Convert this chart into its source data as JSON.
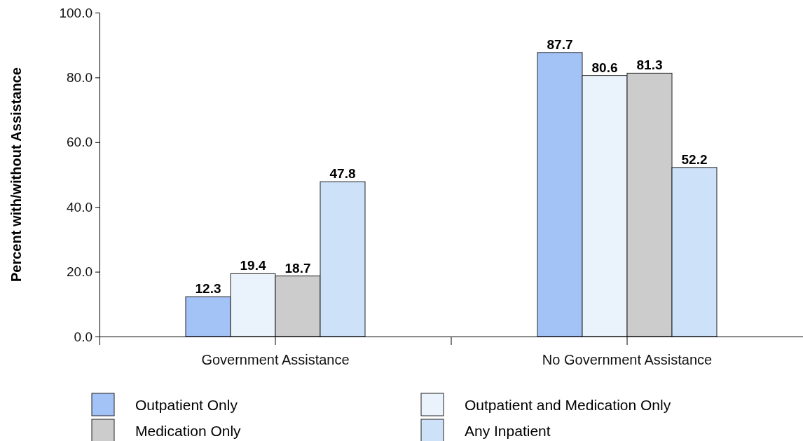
{
  "chart_data": {
    "type": "bar",
    "ylabel": "Percent with/without Assistance",
    "categories": [
      "Government Assistance",
      "No Government Assistance"
    ],
    "series": [
      {
        "name": "Outpatient Only",
        "color": "#a3c2f6",
        "values": [
          12.3,
          87.7
        ]
      },
      {
        "name": "Outpatient and Medication Only",
        "color": "#eaf2fb",
        "values": [
          19.4,
          80.6
        ]
      },
      {
        "name": "Medication Only",
        "color": "#cccccc",
        "values": [
          18.7,
          81.3
        ]
      },
      {
        "name": "Any Inpatient",
        "color": "#cde1f9",
        "values": [
          47.8,
          52.2
        ]
      }
    ],
    "ylim": [
      0,
      100
    ],
    "yticks": [
      {
        "value": 0,
        "label": "0.0"
      },
      {
        "value": 20,
        "label": "20.0"
      },
      {
        "value": 40,
        "label": "40.0"
      },
      {
        "value": 60,
        "label": "60.0"
      },
      {
        "value": 80,
        "label": "80.0"
      },
      {
        "value": 100,
        "label": "100.0"
      }
    ],
    "data_labels": true,
    "legend": "bottom",
    "grid": false
  }
}
